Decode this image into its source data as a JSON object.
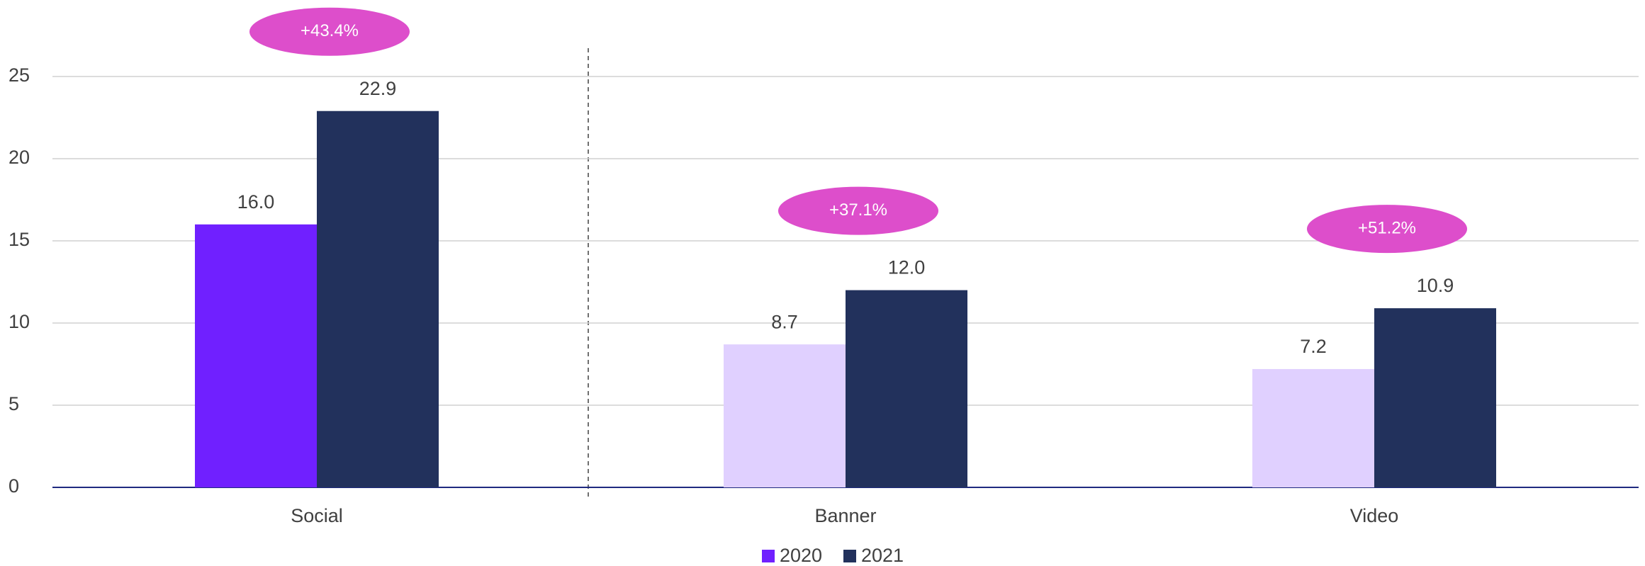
{
  "chart_data": {
    "type": "bar",
    "categories": [
      "Social",
      "Banner",
      "Video"
    ],
    "series": [
      {
        "name": "2020",
        "color": "#7020ff",
        "point_colors": [
          "#7020ff",
          "#e0d0ff",
          "#e0d0ff"
        ],
        "values": [
          16.0,
          8.7,
          7.2
        ],
        "value_labels": [
          "16.0",
          "8.7",
          "7.2"
        ]
      },
      {
        "name": "2021",
        "color": "#22315c",
        "values": [
          22.9,
          12.0,
          10.9
        ],
        "value_labels": [
          "22.9",
          "12.0",
          "10.9"
        ]
      }
    ],
    "annotations": [
      "+43.4%",
      "+37.1%",
      "+51.2%"
    ],
    "annotation_color": "#dd4ecb",
    "ylim": [
      0,
      25
    ],
    "yticks": [
      0,
      5,
      10,
      15,
      20,
      25
    ],
    "grid": true,
    "legend": "bottom"
  }
}
